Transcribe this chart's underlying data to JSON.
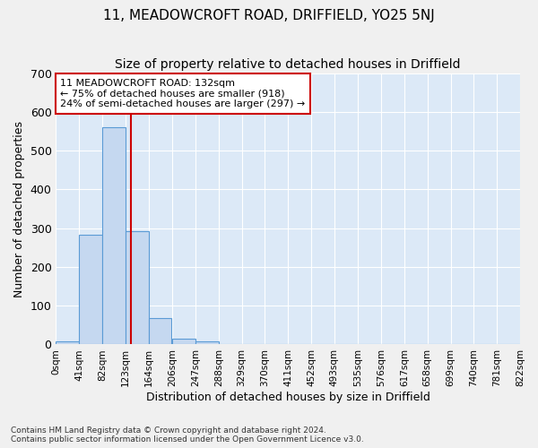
{
  "title": "11, MEADOWCROFT ROAD, DRIFFIELD, YO25 5NJ",
  "subtitle": "Size of property relative to detached houses in Driffield",
  "xlabel": "Distribution of detached houses by size in Driffield",
  "ylabel": "Number of detached properties",
  "footnote1": "Contains HM Land Registry data © Crown copyright and database right 2024.",
  "footnote2": "Contains public sector information licensed under the Open Government Licence v3.0.",
  "bar_left_edges": [
    0,
    41,
    82,
    123,
    164,
    206,
    247,
    288,
    329,
    370,
    411,
    452,
    493,
    535,
    576,
    617,
    658,
    699,
    740,
    781
  ],
  "bar_heights": [
    7,
    282,
    560,
    293,
    68,
    15,
    8,
    0,
    0,
    0,
    0,
    0,
    0,
    0,
    0,
    0,
    0,
    0,
    0,
    0
  ],
  "bin_width": 41,
  "x_tick_labels": [
    "0sqm",
    "41sqm",
    "82sqm",
    "123sqm",
    "164sqm",
    "206sqm",
    "247sqm",
    "288sqm",
    "329sqm",
    "370sqm",
    "411sqm",
    "452sqm",
    "493sqm",
    "535sqm",
    "576sqm",
    "617sqm",
    "658sqm",
    "699sqm",
    "740sqm",
    "781sqm",
    "822sqm"
  ],
  "x_tick_positions": [
    0,
    41,
    82,
    123,
    164,
    206,
    247,
    288,
    329,
    370,
    411,
    452,
    493,
    535,
    576,
    617,
    658,
    699,
    740,
    781,
    822
  ],
  "ylim": [
    0,
    700
  ],
  "yticks": [
    0,
    100,
    200,
    300,
    400,
    500,
    600,
    700
  ],
  "bar_color": "#c5d8f0",
  "bar_edge_color": "#5b9bd5",
  "bg_color": "#dce9f7",
  "grid_color": "#ffffff",
  "vline_x": 132,
  "vline_color": "#cc0000",
  "annotation_title": "11 MEADOWCROFT ROAD: 132sqm",
  "annotation_line2": "← 75% of detached houses are smaller (918)",
  "annotation_line3": "24% of semi-detached houses are larger (297) →",
  "annotation_box_color": "#cc0000",
  "annotation_bg": "#ffffff",
  "title_fontsize": 11,
  "subtitle_fontsize": 10,
  "tick_label_fontsize": 7.5,
  "axis_label_fontsize": 9,
  "xlim": [
    0,
    822
  ]
}
